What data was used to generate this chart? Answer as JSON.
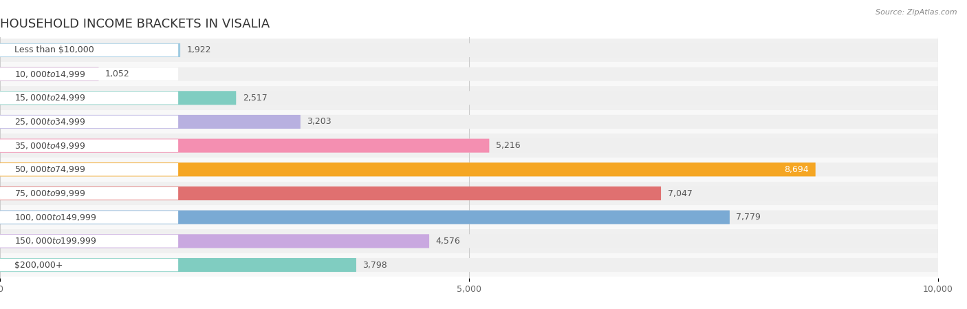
{
  "title": "HOUSEHOLD INCOME BRACKETS IN VISALIA",
  "source": "Source: ZipAtlas.com",
  "categories": [
    "Less than $10,000",
    "$10,000 to $14,999",
    "$15,000 to $24,999",
    "$25,000 to $34,999",
    "$35,000 to $49,999",
    "$50,000 to $74,999",
    "$75,000 to $99,999",
    "$100,000 to $149,999",
    "$150,000 to $199,999",
    "$200,000+"
  ],
  "values": [
    1922,
    1052,
    2517,
    3203,
    5216,
    8694,
    7047,
    7779,
    4576,
    3798
  ],
  "bar_colors": [
    "#9ecae1",
    "#d4b0d4",
    "#80cdc1",
    "#b8b0e0",
    "#f48fb1",
    "#f5a623",
    "#e07070",
    "#7aaad4",
    "#c9a8e0",
    "#80cdc1"
  ],
  "xlim": [
    0,
    10000
  ],
  "xticks": [
    0,
    5000,
    10000
  ],
  "background_color": "#ffffff",
  "bar_background_color": "#efefef",
  "row_background_color": "#f8f8f8",
  "title_fontsize": 13,
  "label_fontsize": 9,
  "value_fontsize": 9
}
